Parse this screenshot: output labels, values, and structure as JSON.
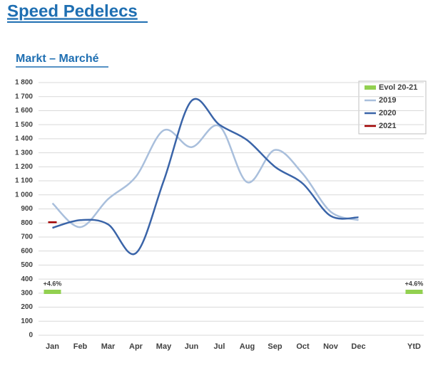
{
  "chart_data": {
    "type": "line",
    "title": "Speed Pedelecs",
    "subtitle": "Markt – Marché",
    "categories": [
      "Jan",
      "Feb",
      "Mar",
      "Apr",
      "May",
      "Jun",
      "Jul",
      "Aug",
      "Sep",
      "Oct",
      "Nov",
      "Dec",
      null,
      "YtD"
    ],
    "series": [
      {
        "name": "Evol 20-21",
        "type": "bar",
        "color": "#92d050",
        "values": [
          4.6,
          null,
          null,
          null,
          null,
          null,
          null,
          null,
          null,
          null,
          null,
          null,
          null,
          4.6
        ],
        "value_labels": [
          "+4.6%",
          null,
          null,
          null,
          null,
          null,
          null,
          null,
          null,
          null,
          null,
          null,
          null,
          "+4.6%"
        ]
      },
      {
        "name": "2019",
        "type": "line",
        "color": "#a9bfdc",
        "values": [
          940,
          770,
          970,
          1130,
          1460,
          1340,
          1490,
          1090,
          1320,
          1150,
          880,
          820,
          null,
          null
        ]
      },
      {
        "name": "2020",
        "type": "line",
        "color": "#3a64a8",
        "values": [
          765,
          820,
          790,
          585,
          1100,
          1670,
          1500,
          1390,
          1200,
          1080,
          850,
          840,
          null,
          null
        ]
      },
      {
        "name": "2021",
        "type": "line",
        "color": "#a00000",
        "values": [
          805,
          null,
          null,
          null,
          null,
          null,
          null,
          null,
          null,
          null,
          null,
          null,
          null,
          null
        ]
      }
    ],
    "ylim": [
      0,
      1800
    ],
    "yticks": [
      0,
      100,
      200,
      300,
      400,
      500,
      600,
      700,
      800,
      900,
      {
        "value": 1000,
        "label": "1 000"
      },
      {
        "value": 1100,
        "label": "1 100"
      },
      {
        "value": 1200,
        "label": "1 200"
      },
      {
        "value": 1300,
        "label": "1 300"
      },
      {
        "value": 1400,
        "label": "1 400"
      },
      {
        "value": 1500,
        "label": "1 500"
      },
      {
        "value": 1600,
        "label": "1 600"
      },
      {
        "value": 1700,
        "label": "1 700"
      },
      {
        "value": 1800,
        "label": "1 800"
      }
    ],
    "grid": true,
    "legend": "top-right"
  }
}
